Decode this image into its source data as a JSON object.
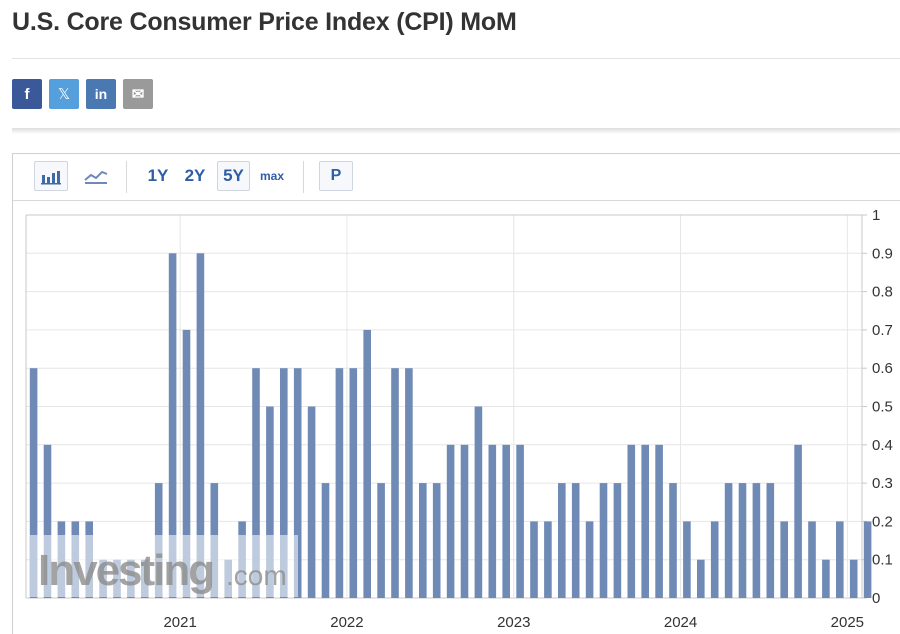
{
  "page": {
    "title": "U.S. Core Consumer Price Index (CPI) MoM",
    "share": [
      {
        "name": "facebook-share-button",
        "glyph": "f"
      },
      {
        "name": "x-share-button",
        "glyph": "𝕏"
      },
      {
        "name": "linkedin-share-button",
        "glyph": "in"
      },
      {
        "name": "email-share-button",
        "glyph": "✉"
      }
    ]
  },
  "toolbar": {
    "bar_icon": "bar-chart-icon",
    "area_icon": "area-chart-icon",
    "ranges": [
      "1Y",
      "2Y",
      "5Y",
      "max"
    ],
    "selected_range": "5Y",
    "p_label": "P"
  },
  "watermark": {
    "brand": "Investing",
    "suffix": ".com"
  },
  "colors": {
    "bar": "#6f8ab4",
    "grid": "#e6e6e6",
    "axis": "#c8c8c8"
  },
  "chart_data": {
    "type": "bar",
    "series": [
      {
        "values": [
          0.6,
          0.4,
          0.2,
          0.2,
          0.2,
          0.1,
          0.1,
          0.1,
          0.1,
          0.3,
          0.9,
          0.7,
          0.9,
          0.3,
          0.1,
          0.2,
          0.6,
          0.5,
          0.6,
          0.6,
          0.5,
          0.3,
          0.6,
          0.6,
          0.7,
          0.3,
          0.6,
          0.6,
          0.3,
          0.3,
          0.4,
          0.4,
          0.5,
          0.4,
          0.4,
          0.4,
          0.2,
          0.2,
          0.3,
          0.3,
          0.2,
          0.3,
          0.3,
          0.4,
          0.4,
          0.4,
          0.3,
          0.2,
          0.1,
          0.2,
          0.3,
          0.3,
          0.3,
          0.3,
          0.2,
          0.4,
          0.2,
          0.1,
          0.2,
          0.1,
          0.2
        ]
      }
    ],
    "x_ticks": [
      "2021",
      "2022",
      "2023",
      "2024",
      "2025"
    ],
    "y_ticks": [
      "0",
      "0.1",
      "0.2",
      "0.3",
      "0.4",
      "0.5",
      "0.6",
      "0.7",
      "0.8",
      "0.9",
      "1"
    ],
    "ylim": [
      0,
      1
    ],
    "y_axis_side": "right",
    "grid": true,
    "legend": "none"
  }
}
